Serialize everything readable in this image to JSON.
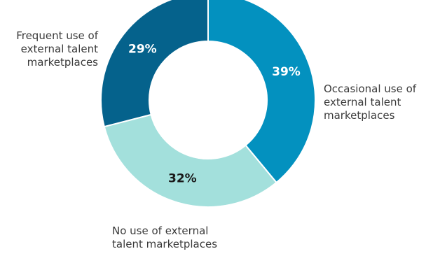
{
  "chart_data": {
    "type": "pie",
    "donut": true,
    "categories": [
      "Occasional use of external talent marketplaces",
      "No use of external talent marketplaces",
      "Frequent use of external talent marketplaces"
    ],
    "values": [
      39,
      32,
      29
    ],
    "data_labels": [
      "39%",
      "32%",
      "29%"
    ],
    "category_lines": [
      [
        "Occasional use of",
        "external talent",
        "marketplaces"
      ],
      [
        "No use of external",
        "talent marketplaces"
      ],
      [
        "Frequent use of",
        "external talent",
        "marketplaces"
      ]
    ],
    "colors": [
      "#0391bf",
      "#a3e0dc",
      "#05628c"
    ],
    "data_label_colors": [
      "#ffffff",
      "#1a1a1a",
      "#ffffff"
    ],
    "title": "",
    "start_angle_deg": 0,
    "direction": "clockwise"
  }
}
